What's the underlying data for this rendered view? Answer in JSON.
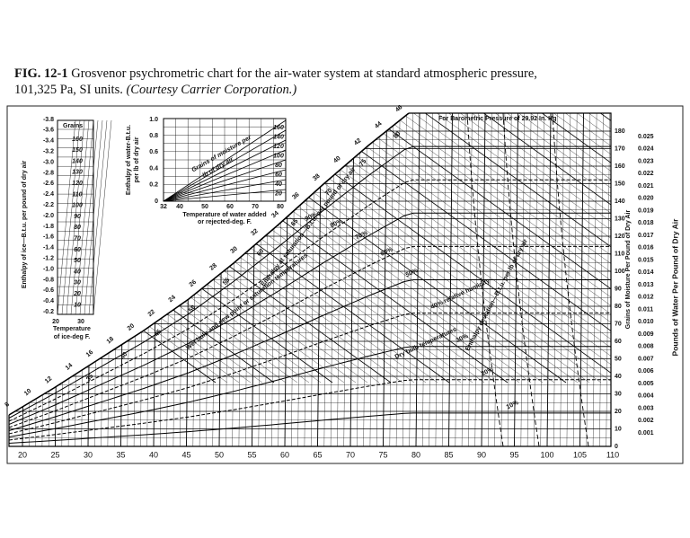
{
  "caption": {
    "label": "FIG. 12-1",
    "line1": "Grosvenor psychrometric chart for the air-water system at standard atmospheric pressure,",
    "line2": "101,325 Pa, SI units.",
    "credit": "(Courtesy Carrier Corporation.)"
  },
  "chart": {
    "pressure_note": "For Barometric Pressure of 29.92 In. Hg",
    "dry_bulb_ticks": [
      "20",
      "25",
      "30",
      "35",
      "40",
      "45",
      "50",
      "55",
      "60",
      "65",
      "70",
      "75",
      "80",
      "85",
      "90",
      "95",
      "100",
      "105",
      "110"
    ],
    "grains_ticks": [
      "180",
      "170",
      "160",
      "150",
      "140",
      "130",
      "120",
      "110",
      "100",
      "90",
      "80",
      "70",
      "60",
      "50",
      "40",
      "30",
      "20",
      "10",
      "0"
    ],
    "pounds_ticks": [
      "0.025",
      "0.024",
      "0.023",
      "0.022",
      "0.021",
      "0.020",
      "0.019",
      "0.018",
      "0.017",
      "0.016",
      "0.015",
      "0.014",
      "0.013",
      "0.012",
      "0.011",
      "0.010",
      "0.009",
      "0.008",
      "0.007",
      "0.006",
      "0.005",
      "0.004",
      "0.003",
      "0.002",
      "0.001"
    ],
    "grains_axis_label": "Grains of Moisture Per Pound of Dry Air",
    "pounds_axis_label": "Pounds of Water Per Pound of Dry Air",
    "enthalpy_scale": [
      "8",
      "10",
      "12",
      "14",
      "16",
      "18",
      "20",
      "22",
      "24",
      "26",
      "28",
      "30",
      "32",
      "34",
      "36",
      "38",
      "40",
      "42",
      "44",
      "46"
    ],
    "wet_bulb_scale": [
      "35",
      "40",
      "45",
      "50",
      "55",
      "60",
      "65",
      "70",
      "75",
      "80"
    ],
    "enthalpy_label": "Enthalpy at saturation—B.t.u. per pound of dry air",
    "wet_bulb_label": "Wet bulb and dew point or saturation temperatures",
    "deviation_label": "Enthalpy deviation—B.t.u. per lb of dry air",
    "dry_bulb_label": "Dry bulb temperatures",
    "rh_labels": [
      "90%",
      "80%",
      "70%",
      "60%",
      "50%",
      "40% relative humidity",
      "30%",
      "20%",
      "10%"
    ]
  },
  "ice_inset": {
    "header": "Grains",
    "enthalpy_ticks": [
      "-3.8",
      "-3.6",
      "-3.4",
      "-3.2",
      "-3.0",
      "-2.8",
      "-2.6",
      "-2.4",
      "-2.2",
      "-2.0",
      "-1.8",
      "-1.6",
      "-1.4",
      "-1.2",
      "-1.0",
      "-0.8",
      "-0.6",
      "-0.4",
      "-0.2"
    ],
    "grains_ticks": [
      "160",
      "150",
      "140",
      "130",
      "120",
      "110",
      "100",
      "90",
      "80",
      "70",
      "60",
      "50",
      "40",
      "30",
      "20",
      "10"
    ],
    "temp_ticks": [
      "20",
      "30"
    ],
    "y_label": "Enthalpy of ice—B.t.u. per pound of dry air",
    "x_label_line1": "Temperature",
    "x_label_line2": "of ice-deg F."
  },
  "water_inset": {
    "y_ticks": [
      "1.0",
      "0.8",
      "0.6",
      "0.4",
      "0.2",
      "0"
    ],
    "x_ticks": [
      "32",
      "40",
      "50",
      "60",
      "70",
      "80"
    ],
    "grains_ticks": [
      "160",
      "140",
      "120",
      "100",
      "80",
      "60",
      "40",
      "20"
    ],
    "y_label_line1": "Enthalpy of water-B.t.u.",
    "y_label_line2": "per lb of dry air",
    "diag_label_line1": "Grains of moisture per",
    "diag_label_line2": "lb of dry air",
    "x_label_line1": "Temperature of water added",
    "x_label_line2": "or rejected-deg. F."
  }
}
